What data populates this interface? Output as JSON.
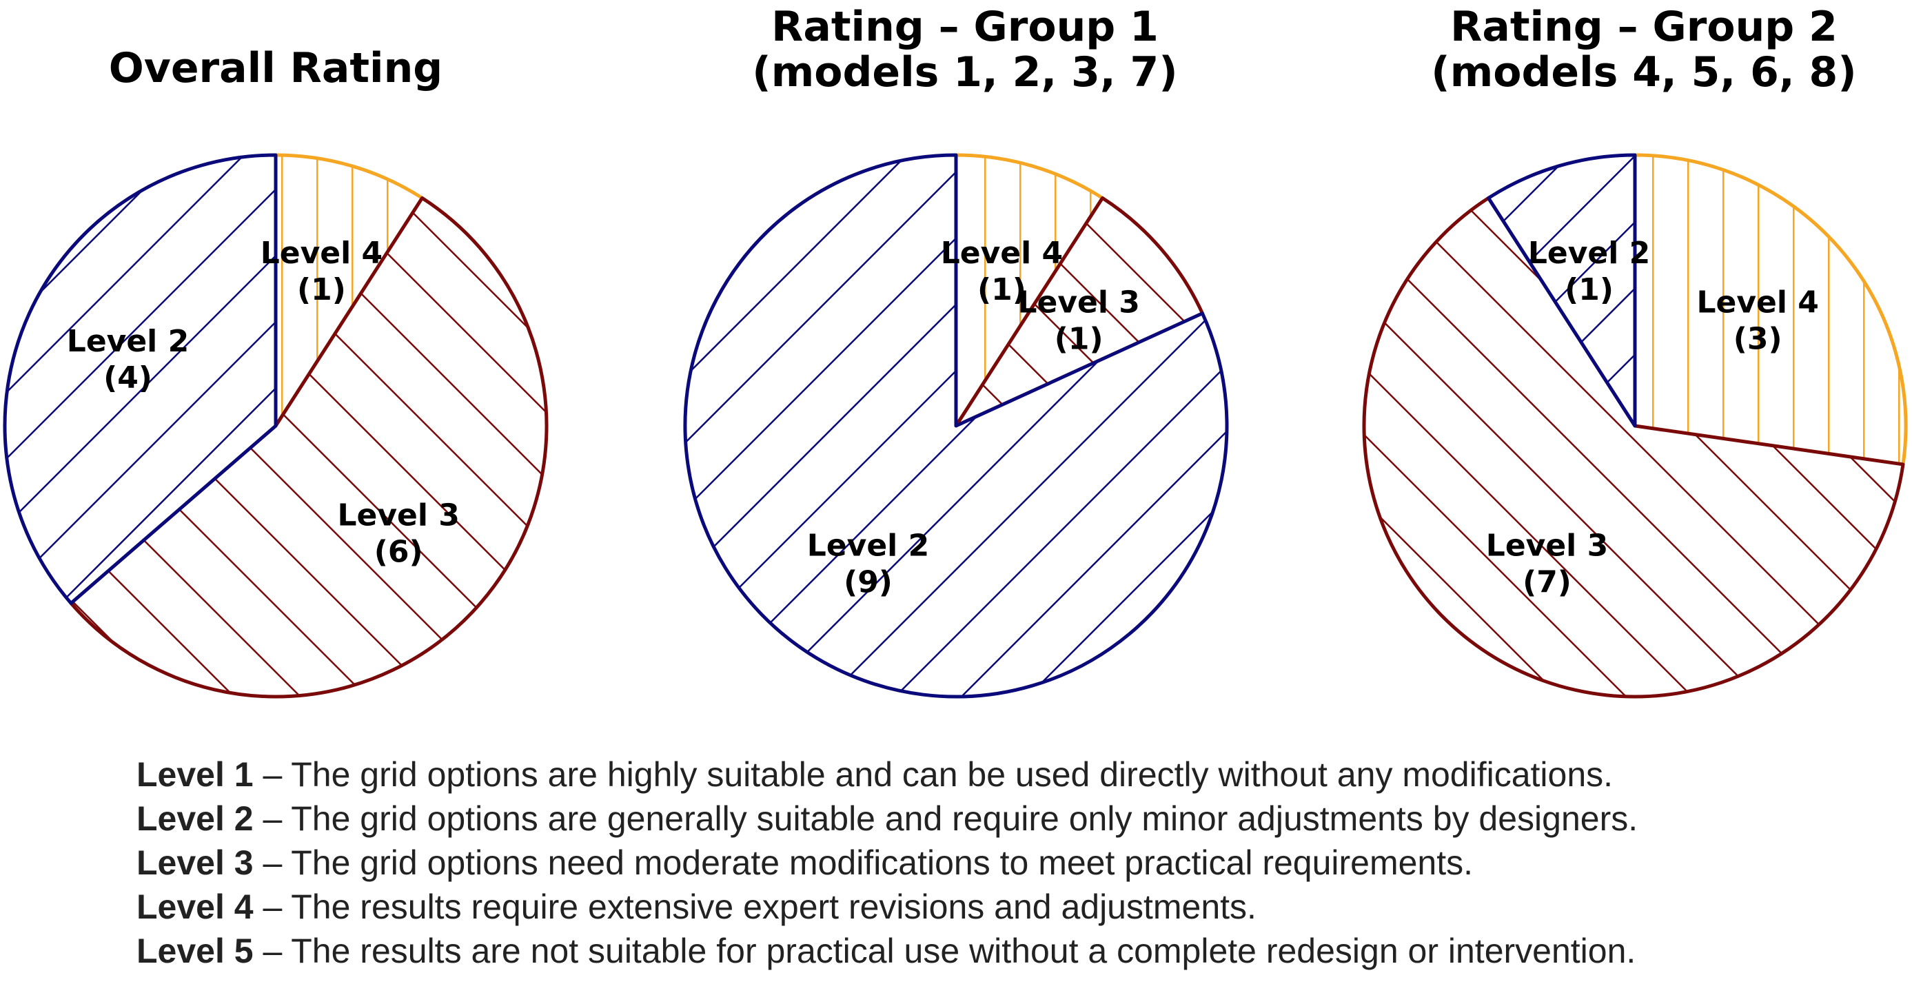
{
  "chart_data": [
    {
      "type": "pie",
      "title": "Overall Rating",
      "slices": [
        {
          "label": "Level 4",
          "count_text": "(1)",
          "value": 1,
          "color": "#F5A623",
          "pattern": "vertical"
        },
        {
          "label": "Level 3",
          "count_text": "(6)",
          "value": 6,
          "color": "#7A0A0A",
          "pattern": "backslash"
        },
        {
          "label": "Level 2",
          "count_text": "(4)",
          "value": 4,
          "color": "#0A0A7A",
          "pattern": "slash"
        }
      ]
    },
    {
      "type": "pie",
      "title": "Rating – Group 1\n(models 1, 2, 3, 7)",
      "slices": [
        {
          "label": "Level 4",
          "count_text": "(1)",
          "value": 1,
          "color": "#F5A623",
          "pattern": "vertical"
        },
        {
          "label": "Level 3",
          "count_text": "(1)",
          "value": 1,
          "color": "#7A0A0A",
          "pattern": "backslash"
        },
        {
          "label": "Level 2",
          "count_text": "(9)",
          "value": 9,
          "color": "#0A0A7A",
          "pattern": "slash"
        }
      ]
    },
    {
      "type": "pie",
      "title": "Rating – Group 2\n(models 4, 5, 6, 8)",
      "slices": [
        {
          "label": "Level 4",
          "count_text": "(3)",
          "value": 3,
          "color": "#F5A623",
          "pattern": "vertical"
        },
        {
          "label": "Level 3",
          "count_text": "(7)",
          "value": 7,
          "color": "#7A0A0A",
          "pattern": "backslash"
        },
        {
          "label": "Level 2",
          "count_text": "(1)",
          "value": 1,
          "color": "#0A0A7A",
          "pattern": "slash"
        }
      ]
    }
  ],
  "legend": [
    {
      "level": "Level 1",
      "text": " – The grid options are highly suitable and can be used directly without any modifications."
    },
    {
      "level": "Level 2",
      "text": " – The grid options are generally suitable and require only minor adjustments by designers."
    },
    {
      "level": "Level 3",
      "text": " – The grid options need moderate modifications to meet practical requirements."
    },
    {
      "level": "Level 4",
      "text": " – The results require extensive expert revisions and adjustments."
    },
    {
      "level": "Level 5",
      "text": " – The results are not suitable for practical use without a complete redesign or intervention."
    }
  ]
}
